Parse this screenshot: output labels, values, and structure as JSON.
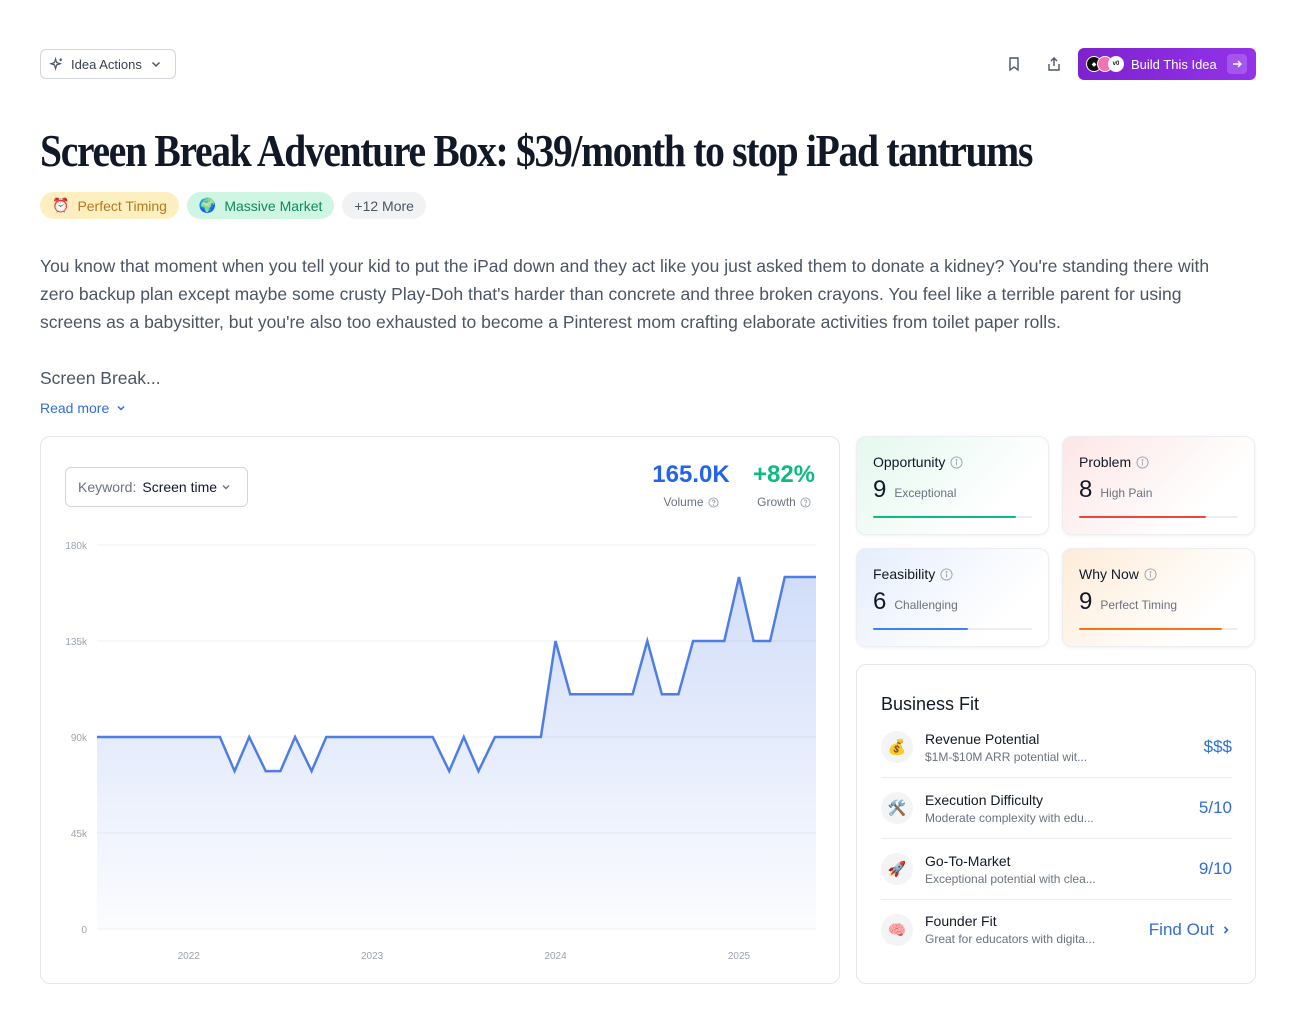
{
  "toolbar": {
    "idea_actions_label": "Idea Actions",
    "build_button_label": "Build This Idea"
  },
  "title": "Screen Break Adventure Box: $39/month to stop iPad tantrums",
  "badges": [
    {
      "icon": "⏰",
      "label": "Perfect Timing"
    },
    {
      "icon": "🌍",
      "label": "Massive Market"
    },
    {
      "label": "+12 More"
    }
  ],
  "description": {
    "paragraph1": "You know that moment when you tell your kid to put the iPad down and they act like you just asked them to donate a kidney? You're standing there with zero backup plan except maybe some crusty Play-Doh that's harder than concrete and three broken crayons. You feel like a terrible parent for using screens as a babysitter, but you're also too exhausted to become a Pinterest mom crafting elaborate activities from toilet paper rolls.",
    "paragraph2": "Screen Break...",
    "read_more": "Read more"
  },
  "keyword": {
    "label": "Keyword:",
    "value": "Screen time"
  },
  "stats": {
    "volume_value": "165.0K",
    "volume_label": "Volume",
    "growth_value": "+82%",
    "growth_label": "Growth"
  },
  "chart_data": {
    "type": "area",
    "y_ticks": [
      "180k",
      "135k",
      "90k",
      "45k",
      "0"
    ],
    "x_ticks": [
      {
        "label": "2022",
        "x": 2022.0
      },
      {
        "label": "2023",
        "x": 2023.0
      },
      {
        "label": "2024",
        "x": 2024.0
      },
      {
        "label": "2025",
        "x": 2025.0
      }
    ],
    "ylim": [
      0,
      180000
    ],
    "xlim": [
      2021.5,
      2025.42
    ],
    "series": [
      {
        "values": [
          [
            2021.5,
            90000
          ],
          [
            2022.17,
            90000
          ],
          [
            2022.25,
            74000
          ],
          [
            2022.33,
            90000
          ],
          [
            2022.42,
            74000
          ],
          [
            2022.5,
            74000
          ],
          [
            2022.58,
            90000
          ],
          [
            2022.67,
            74000
          ],
          [
            2022.75,
            90000
          ],
          [
            2023.33,
            90000
          ],
          [
            2023.42,
            74000
          ],
          [
            2023.5,
            90000
          ],
          [
            2023.58,
            74000
          ],
          [
            2023.67,
            90000
          ],
          [
            2023.92,
            90000
          ],
          [
            2024.0,
            135000
          ],
          [
            2024.08,
            110000
          ],
          [
            2024.42,
            110000
          ],
          [
            2024.5,
            135000
          ],
          [
            2024.58,
            110000
          ],
          [
            2024.67,
            110000
          ],
          [
            2024.75,
            135000
          ],
          [
            2024.92,
            135000
          ],
          [
            2025.0,
            165000
          ],
          [
            2025.08,
            135000
          ],
          [
            2025.17,
            135000
          ],
          [
            2025.25,
            165000
          ],
          [
            2025.42,
            165000
          ]
        ]
      }
    ],
    "line_color": "#4f7de8",
    "grid": true
  },
  "scores": {
    "opportunity": {
      "title": "Opportunity",
      "value": "9",
      "label": "Exceptional",
      "fraction": 0.9,
      "color": "#10b981"
    },
    "problem": {
      "title": "Problem",
      "value": "8",
      "label": "High Pain",
      "fraction": 0.8,
      "color": "#ef4444"
    },
    "feasibility": {
      "title": "Feasibility",
      "value": "6",
      "label": "Challenging",
      "fraction": 0.6,
      "color": "#3b82f6"
    },
    "why_now": {
      "title": "Why Now",
      "value": "9",
      "label": "Perfect Timing",
      "fraction": 0.9,
      "color": "#f97316"
    }
  },
  "business_fit": {
    "title": "Business Fit",
    "items": [
      {
        "icon": "💰",
        "name": "Revenue Potential",
        "sub": "$1M-$10M ARR potential wit...",
        "value": "$$$"
      },
      {
        "icon": "🛠️",
        "name": "Execution Difficulty",
        "sub": "Moderate complexity with edu...",
        "value": "5/10"
      },
      {
        "icon": "🚀",
        "name": "Go-To-Market",
        "sub": "Exceptional potential with clea...",
        "value": "9/10"
      },
      {
        "icon": "🧠",
        "name": "Founder Fit",
        "sub": "Great for educators with digita...",
        "value": "Find Out"
      }
    ]
  }
}
